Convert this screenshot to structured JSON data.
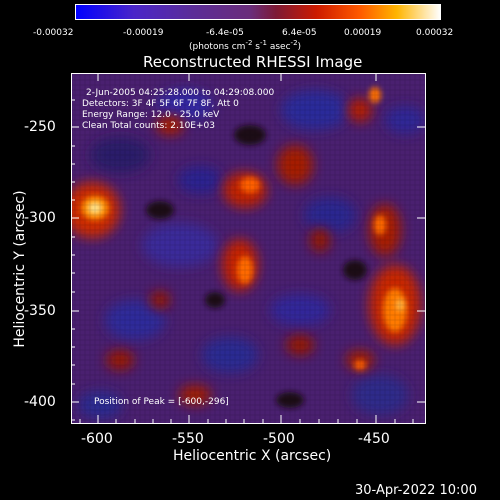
{
  "colorbar": {
    "tick_labels": [
      "-0.00032",
      "-0.00019",
      "-6.4e-05",
      "6.4e-05",
      "0.00019",
      "0.00032"
    ],
    "units_label": "(photons cm",
    "units_sup1": "-2",
    "units_mid1": " s",
    "units_sup2": "-1",
    "units_mid2": " asec",
    "units_sup3": "-2",
    "units_end": ")"
  },
  "plot": {
    "title": "Reconstructed RHESSI Image",
    "x_label": "Heliocentric X (arcsec)",
    "y_label": "Heliocentric Y (arcsec)",
    "x_ticks": [
      "-600",
      "-550",
      "-500",
      "-450"
    ],
    "y_ticks": [
      "-250",
      "-300",
      "-350",
      "-400"
    ],
    "x_range": [
      -612,
      -424
    ],
    "y_range": [
      -412,
      -225
    ]
  },
  "annotation": {
    "line1": " 2-Jun-2005 04:25:28.000 to 04:29:08.000",
    "line2": "Detectors: 3F 4F 5F 6F 7F 8F, Att 0",
    "line3": "Energy Range: 12.0 - 25.0 keV",
    "line4": "Clean    Total counts: 2.10E+03",
    "peak": "Position of Peak = [-600,-296]"
  },
  "footer": {
    "timestamp": "30-Apr-2022 10:00"
  },
  "colors": {
    "background": "#000000",
    "cmap_low": "#0000ff",
    "cmap_mid": "#4b1e7c",
    "cmap_high": "#ff6a00",
    "cmap_top": "#ffffff"
  }
}
